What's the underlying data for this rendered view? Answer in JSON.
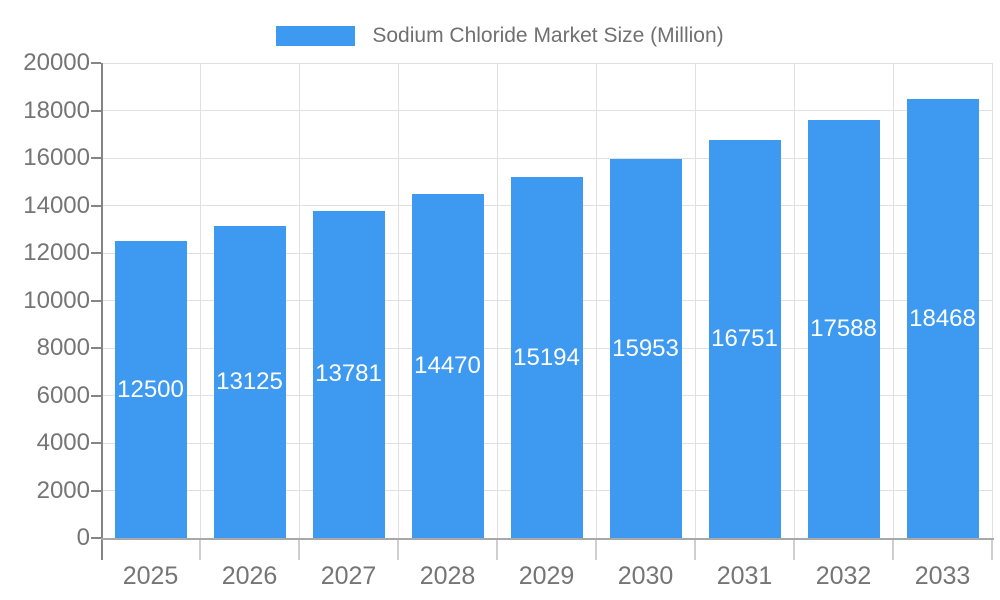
{
  "legend": {
    "label": "Sodium Chloride Market Size (Million)"
  },
  "chart_data": {
    "type": "bar",
    "title": "Sodium Chloride Market Size (Million)",
    "categories": [
      "2025",
      "2026",
      "2027",
      "2028",
      "2029",
      "2030",
      "2031",
      "2032",
      "2033"
    ],
    "values": [
      12500,
      13125,
      13781,
      14470,
      15194,
      15953,
      16751,
      17588,
      18468
    ],
    "xlabel": "",
    "ylabel": "",
    "ylim": [
      0,
      20000
    ],
    "ytick_step": 2000,
    "yticks": [
      0,
      2000,
      4000,
      6000,
      8000,
      10000,
      12000,
      14000,
      16000,
      18000,
      20000
    ],
    "grid": true,
    "legend_position": "top-center",
    "value_label_position": "inside-middle",
    "colors": {
      "bar": "#3D9AF0",
      "grid": "#E0E0E0",
      "axis_y": "#858585",
      "axis_x": "#A8A8A8",
      "tick_x": "#CFCFCF",
      "label": "#757575",
      "legend_text": "#707070",
      "value_label": "#FFFFFF",
      "background": "#FFFFFF"
    }
  }
}
